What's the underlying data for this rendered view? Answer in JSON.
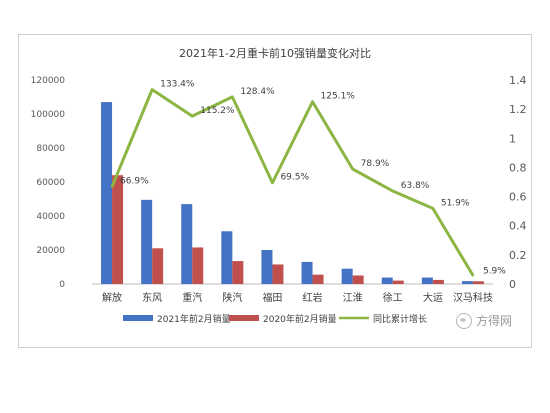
{
  "chart_data": {
    "type": "bar",
    "title": "2021年1-2月重卡前10强销量变化对比",
    "categories": [
      "解放",
      "东风",
      "重汽",
      "陕汽",
      "福田",
      "红岩",
      "江淮",
      "徐工",
      "大运",
      "汉马科技"
    ],
    "series": [
      {
        "name": "2021年前2月销量",
        "type": "bar",
        "axis": "left",
        "color": "#4472C4",
        "values": [
          107000,
          49500,
          47000,
          31000,
          20000,
          13000,
          9000,
          3800,
          3800,
          1700
        ]
      },
      {
        "name": "2020年前2月销量",
        "type": "bar",
        "axis": "left",
        "color": "#C0504D",
        "values": [
          64000,
          21000,
          21500,
          13500,
          11500,
          5500,
          5000,
          2000,
          2400,
          1600
        ]
      },
      {
        "name": "同比累计增长",
        "type": "line",
        "axis": "right",
        "color": "#8DB544",
        "values": [
          0.669,
          1.334,
          1.152,
          1.284,
          0.695,
          1.251,
          0.789,
          0.638,
          0.519,
          0.059
        ],
        "labels": [
          "66.9%",
          "133.4%",
          "115.2%",
          "128.4%",
          "69.5%",
          "125.1%",
          "78.9%",
          "63.8%",
          "51.9%",
          "5.9%"
        ]
      }
    ],
    "left_axis": {
      "ylim": [
        0,
        120000
      ],
      "ticks": [
        "0",
        "20000",
        "40000",
        "60000",
        "80000",
        "100000",
        "120000"
      ]
    },
    "right_axis": {
      "ylim": [
        0,
        1.4
      ],
      "ticks": [
        "0",
        "0.2",
        "0.4",
        "0.6",
        "0.8",
        "1",
        "1.2",
        "1.4"
      ]
    },
    "grid": false,
    "legend": "bottom"
  },
  "watermark": {
    "text": "方得网"
  }
}
